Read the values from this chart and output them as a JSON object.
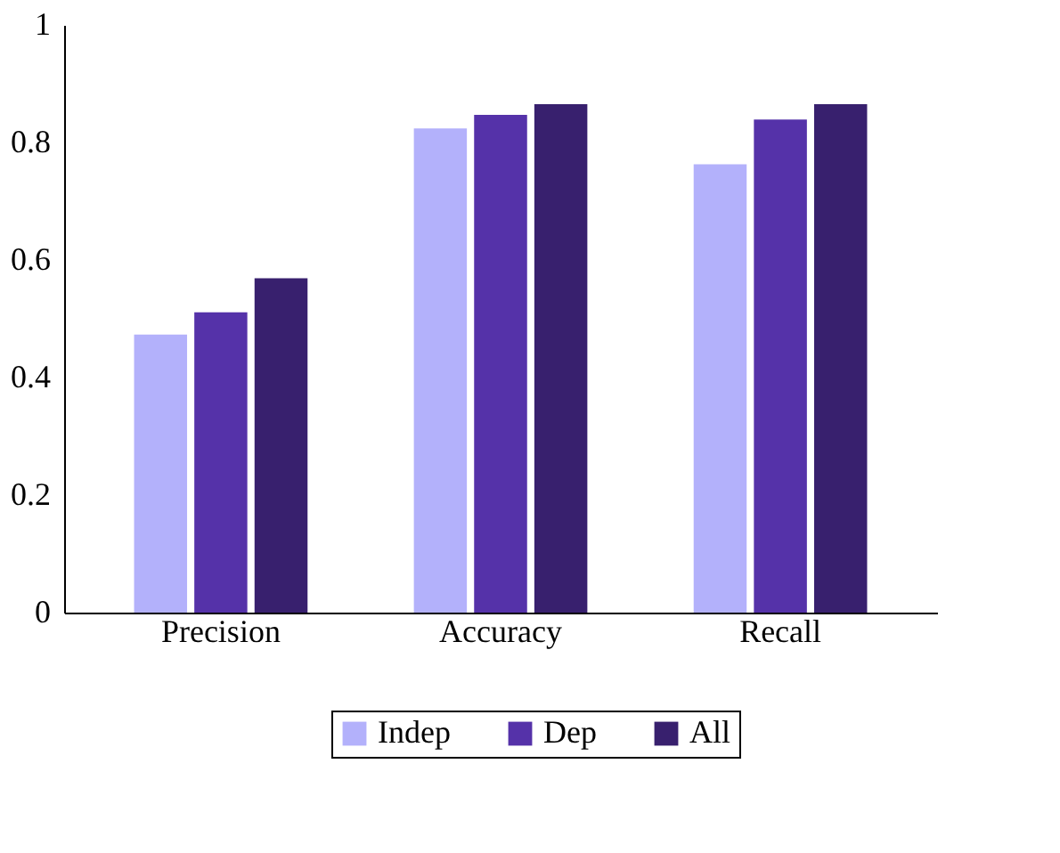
{
  "chart_data": {
    "type": "bar",
    "categories": [
      "Precision",
      "Accuracy",
      "Recall"
    ],
    "series": [
      {
        "name": "Indep",
        "color": "#b3b1fb",
        "values": [
          0.473,
          0.824,
          0.763
        ]
      },
      {
        "name": "Dep",
        "color": "#5532a9",
        "values": [
          0.511,
          0.847,
          0.839
        ]
      },
      {
        "name": "All",
        "color": "#38206e",
        "values": [
          0.569,
          0.865,
          0.865
        ]
      }
    ],
    "ylim": [
      0,
      1
    ],
    "yticks": [
      0,
      0.2,
      0.4,
      0.6,
      0.8,
      1
    ],
    "grid": false,
    "legend": "bottom"
  }
}
